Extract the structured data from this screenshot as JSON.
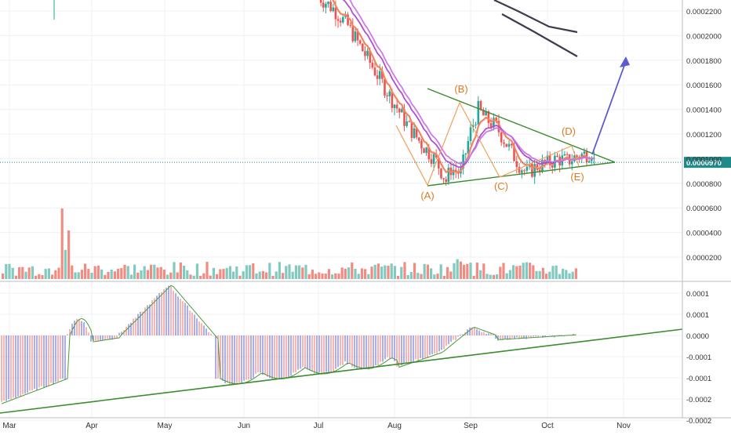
{
  "colors": {
    "up": "#82c9bf",
    "down": "#f28b82",
    "candle_up": "#26a69a",
    "candle_down": "#ef5350",
    "ema_orange": "#f4845f",
    "ema_purple": "#b04fcf",
    "ema_purple_light": "#cf7ae3",
    "sma_dark": "#3c3c4c",
    "triangle": "#3a8c2e",
    "wave": "#f0a05a",
    "wave_label": "#e07a1e",
    "arrow": "#5c5ccf",
    "macd_pos": "#f06b6b",
    "macd_neg": "#5b5bd6",
    "macd_line": "#4a9a3a",
    "price_tag_bg": "#1f8a8a",
    "grid": "#eef0f3",
    "axis_text": "#333333"
  },
  "chart_data": [
    {
      "type": "line",
      "name": "price",
      "x_tick_labels": [
        "Mar",
        "Apr",
        "May",
        "Jun",
        "Jul",
        "Aug",
        "Sep",
        "Oct",
        "Nov"
      ],
      "y_tick_labels": [
        "0.0000200",
        "0.0000400",
        "0.0000600",
        "0.0000800",
        "0.0001000",
        "0.0001200",
        "0.0001400",
        "0.0001600",
        "0.0001800",
        "0.0002000",
        "0.0002200"
      ],
      "y_ticks": [
        2e-05,
        4e-05,
        6e-05,
        8e-05,
        0.0001,
        0.00012,
        0.00014,
        0.00016,
        0.00018,
        0.0002,
        0.00022
      ],
      "ylim": [
        8.2e-06,
        0.0002295
      ],
      "current_price_label": "0.0000970",
      "current_price": 9.7e-05,
      "candles_close_sample": [
        [
          "Jul 1",
          0.000228
        ],
        [
          "Jul 8",
          0.000206
        ],
        [
          "Jul 15",
          0.000172
        ],
        [
          "Jul 22",
          0.000145
        ],
        [
          "Jul 29",
          0.000125
        ],
        [
          "Aug 5",
          0.00011
        ],
        [
          "Aug 12",
          9.6e-05
        ],
        [
          "Aug 15",
          8e-05
        ],
        [
          "Aug 20",
          9e-05
        ],
        [
          "Aug 27",
          0.00014
        ],
        [
          "Sep 3",
          0.000125
        ],
        [
          "Sep 10",
          9.4e-05
        ],
        [
          "Sep 14",
          8.6e-05
        ],
        [
          "Sep 20",
          9.8e-05
        ],
        [
          "Sep 27",
          0.0001
        ],
        [
          "Oct 4",
          0.000102
        ],
        [
          "Oct 10",
          0.000108
        ],
        [
          "Oct 13",
          9.7e-05
        ]
      ],
      "wave_points": [
        {
          "label": "(A)",
          "date": "Aug 15",
          "value": 7.85e-05
        },
        {
          "label": "(B)",
          "date": "Aug 27",
          "value": 0.0001465
        },
        {
          "label": "(C)",
          "date": "Sep 12",
          "value": 8.45e-05
        },
        {
          "label": "(D)",
          "date": "Oct 11",
          "value": 0.000109
        },
        {
          "label": "(E)",
          "date": "Oct 13",
          "value": 9.15e-05
        }
      ],
      "grid": true
    },
    {
      "type": "bar",
      "name": "volume",
      "note_colors": "up/down",
      "grid": true
    },
    {
      "type": "bar",
      "name": "macd",
      "y_tick_labels": [
        "0.0001",
        "0.0001",
        "0.0000",
        "-0.0001",
        "-0.0001",
        "-0.0002",
        "-0.0002"
      ],
      "y_ticks": [
        0.0001,
        5e-05,
        0.0,
        -5e-05,
        -0.0001,
        -0.00015,
        -0.0002
      ],
      "ylim": [
        -0.000228,
        0.000124
      ],
      "grid": true
    }
  ]
}
